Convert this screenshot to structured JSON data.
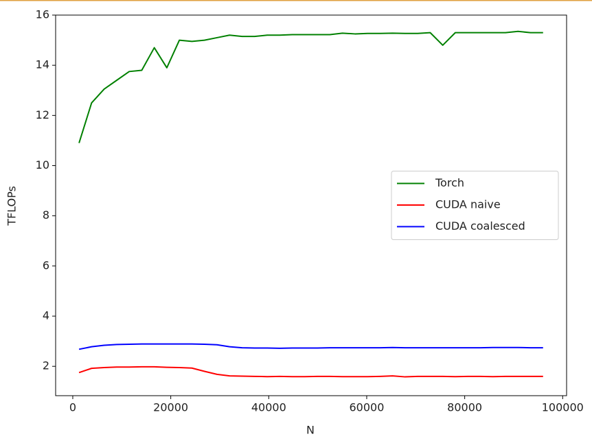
{
  "chart_data": {
    "type": "line",
    "x_label": "N",
    "y_label": "TFLOPs",
    "x": [
      1280,
      3840,
      6400,
      8960,
      11520,
      14080,
      16640,
      19200,
      21760,
      24320,
      26880,
      29440,
      32000,
      34560,
      37120,
      39680,
      42240,
      44800,
      47360,
      49920,
      52480,
      55040,
      57600,
      60160,
      62720,
      65280,
      67840,
      70400,
      72960,
      75520,
      78080,
      80640,
      83200,
      85760,
      88320,
      90880,
      93440,
      96000
    ],
    "series": [
      {
        "name": "Torch",
        "color": "#008000",
        "values": [
          10.9,
          12.5,
          13.05,
          13.4,
          13.75,
          13.8,
          14.7,
          13.9,
          15.0,
          14.95,
          15.0,
          15.1,
          15.2,
          15.15,
          15.15,
          15.2,
          15.2,
          15.22,
          15.22,
          15.22,
          15.22,
          15.28,
          15.25,
          15.27,
          15.27,
          15.28,
          15.27,
          15.27,
          15.3,
          14.8,
          15.3,
          15.3,
          15.3,
          15.3,
          15.3,
          15.35,
          15.3,
          15.3
        ]
      },
      {
        "name": "CUDA naive",
        "color": "#ff0000",
        "values": [
          1.75,
          1.92,
          1.95,
          1.97,
          1.97,
          1.98,
          1.98,
          1.96,
          1.95,
          1.93,
          1.8,
          1.68,
          1.62,
          1.61,
          1.6,
          1.59,
          1.6,
          1.59,
          1.59,
          1.6,
          1.6,
          1.59,
          1.59,
          1.59,
          1.6,
          1.62,
          1.58,
          1.6,
          1.6,
          1.6,
          1.59,
          1.6,
          1.6,
          1.59,
          1.6,
          1.6,
          1.6,
          1.6
        ]
      },
      {
        "name": "CUDA coalesced",
        "color": "#0000ff",
        "values": [
          2.68,
          2.78,
          2.84,
          2.87,
          2.88,
          2.89,
          2.89,
          2.89,
          2.89,
          2.89,
          2.88,
          2.86,
          2.78,
          2.74,
          2.73,
          2.73,
          2.72,
          2.73,
          2.73,
          2.73,
          2.74,
          2.74,
          2.74,
          2.74,
          2.74,
          2.75,
          2.74,
          2.74,
          2.74,
          2.74,
          2.74,
          2.74,
          2.74,
          2.75,
          2.75,
          2.75,
          2.74,
          2.74
        ]
      }
    ],
    "xlim": [
      -3500,
      100800
    ],
    "ylim": [
      0.83,
      16.0
    ],
    "xticks": [
      0,
      20000,
      40000,
      60000,
      80000,
      100000
    ],
    "yticks": [
      2,
      4,
      6,
      8,
      10,
      12,
      14,
      16
    ],
    "legend": "center right"
  }
}
